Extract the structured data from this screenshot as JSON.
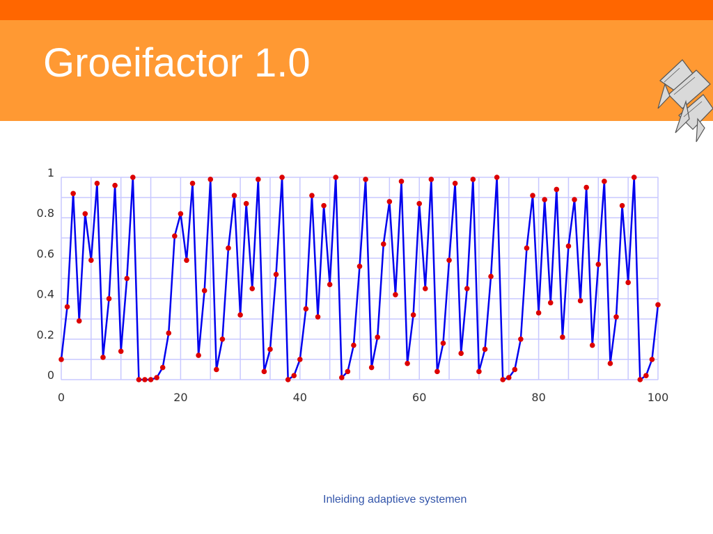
{
  "slide": {
    "title": "Groeifactor 1.0",
    "footer": "Inleiding adaptieve systemen",
    "logo_icon": "flying-fish-logo"
  },
  "colors": {
    "top_stripe": "#ff6600",
    "header_band": "#ff9933",
    "line": "#0000ee",
    "marker": "#dd0000",
    "grid": "#c8c8ff",
    "footer_text": "#3355aa"
  },
  "chart_data": {
    "type": "line",
    "title": "",
    "xlabel": "",
    "ylabel": "",
    "xlim": [
      0,
      100
    ],
    "ylim": [
      0,
      1
    ],
    "x_ticks": [
      0,
      20,
      40,
      60,
      80,
      100
    ],
    "y_ticks": [
      0,
      0.2,
      0.4,
      0.6,
      0.8,
      1
    ],
    "x_tick_labels": [
      "0",
      "20",
      "40",
      "60",
      "80",
      "100"
    ],
    "y_tick_labels": [
      "0",
      "0.2",
      "0.4",
      "0.6",
      "0.8",
      "1"
    ],
    "grid": true,
    "legend": "none",
    "markers": true,
    "series": [
      {
        "values": [
          0.1,
          0.36,
          0.92,
          0.29,
          0.82,
          0.59,
          0.97,
          0.11,
          0.4,
          0.96,
          0.14,
          0.5,
          1.0,
          0.0,
          0.0,
          0.0,
          0.01,
          0.06,
          0.23,
          0.71,
          0.82,
          0.59,
          0.97,
          0.12,
          0.44,
          0.99,
          0.05,
          0.2,
          0.65,
          0.91,
          0.32,
          0.87,
          0.45,
          0.99,
          0.04,
          0.15,
          0.52,
          1.0,
          0.0,
          0.02,
          0.1,
          0.35,
          0.91,
          0.31,
          0.86,
          0.47,
          1.0,
          0.01,
          0.04,
          0.17,
          0.56,
          0.99,
          0.06,
          0.21,
          0.67,
          0.88,
          0.42,
          0.98,
          0.08,
          0.32,
          0.87,
          0.45,
          0.99,
          0.04,
          0.18,
          0.59,
          0.97,
          0.13,
          0.45,
          0.99,
          0.04,
          0.15,
          0.51,
          1.0,
          0.0,
          0.01,
          0.05,
          0.2,
          0.65,
          0.91,
          0.33,
          0.89,
          0.38,
          0.94,
          0.21,
          0.66,
          0.89,
          0.39,
          0.95,
          0.17,
          0.57,
          0.98,
          0.08,
          0.31,
          0.86,
          0.48,
          1.0,
          0.0,
          0.02,
          0.1,
          0.37
        ]
      }
    ]
  }
}
